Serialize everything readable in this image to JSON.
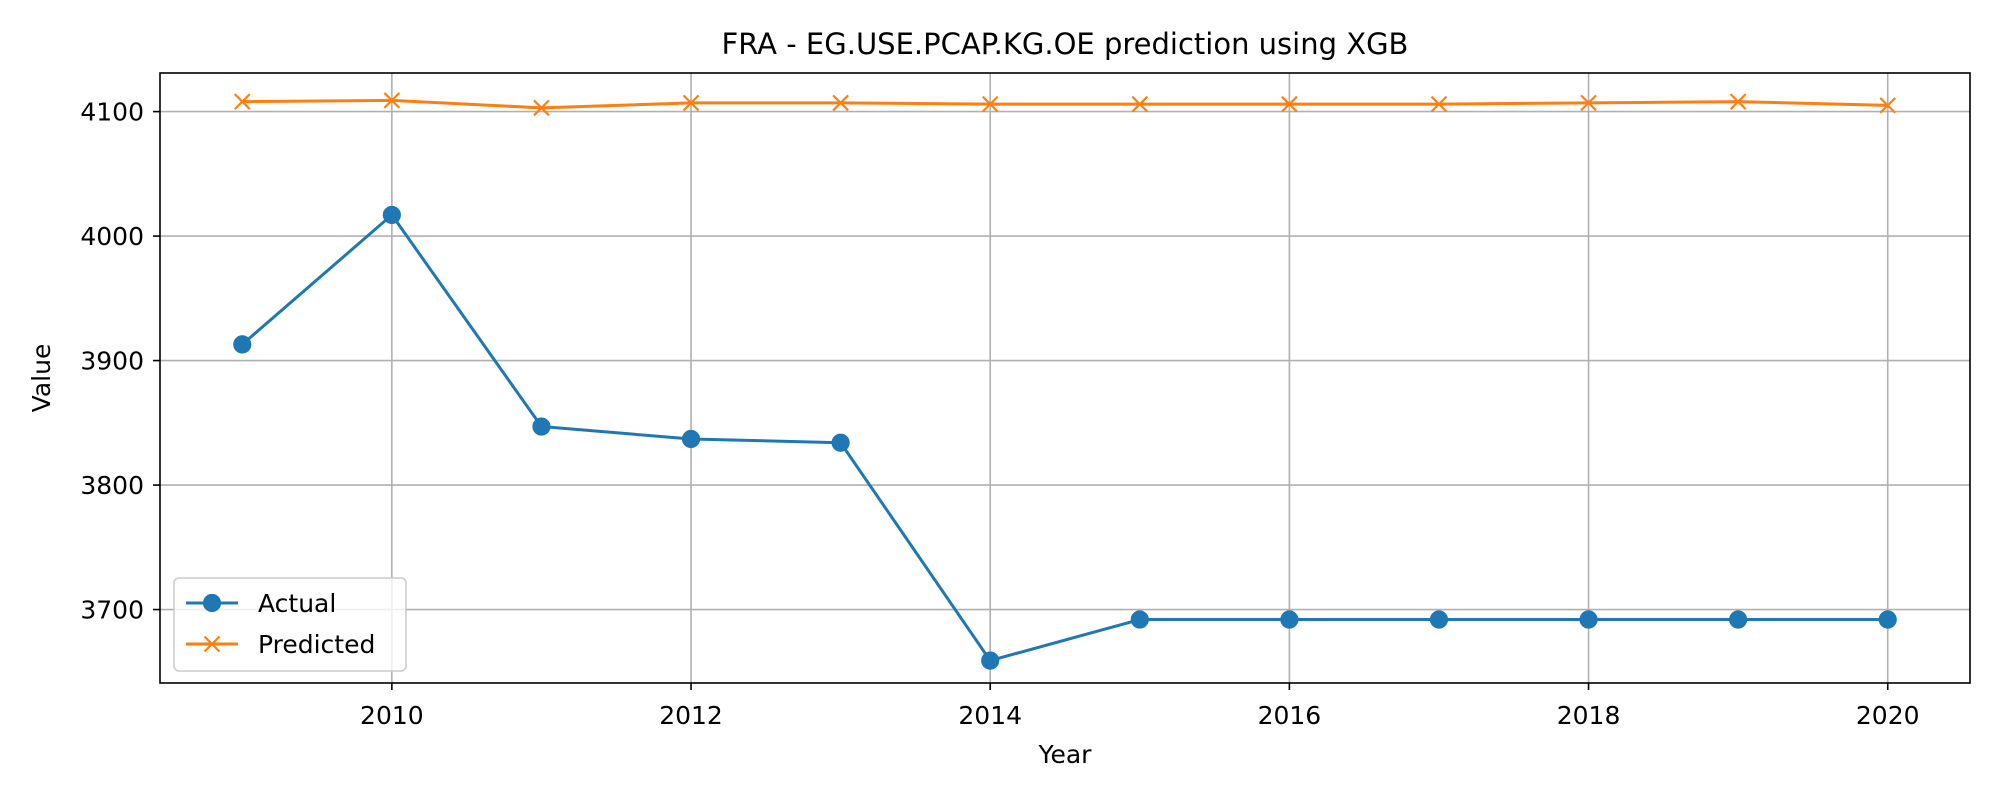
{
  "chart_data": {
    "type": "line",
    "title": "FRA - EG.USE.PCAP.KG.OE prediction using XGB",
    "xlabel": "Year",
    "ylabel": "Value",
    "x": [
      2009,
      2010,
      2011,
      2012,
      2013,
      2014,
      2015,
      2016,
      2017,
      2018,
      2019,
      2020
    ],
    "xlim": [
      2008.45,
      2020.55
    ],
    "ylim": [
      3641,
      4131
    ],
    "xticks": [
      2010,
      2012,
      2014,
      2016,
      2018,
      2020
    ],
    "yticks": [
      3700,
      3800,
      3900,
      4000,
      4100
    ],
    "grid": true,
    "legend_position": "bottom-left",
    "series": [
      {
        "name": "Actual",
        "marker": "circle",
        "color": "#1f77b4",
        "values": [
          3913,
          4017,
          3847,
          3837,
          3834,
          3659,
          3692,
          3692,
          3692,
          3692,
          3692,
          3692
        ]
      },
      {
        "name": "Predicted",
        "marker": "x",
        "color": "#ff7f0e",
        "values": [
          4108,
          4109,
          4103,
          4107,
          4107,
          4106,
          4106,
          4106,
          4106,
          4107,
          4108,
          4105
        ]
      }
    ]
  }
}
